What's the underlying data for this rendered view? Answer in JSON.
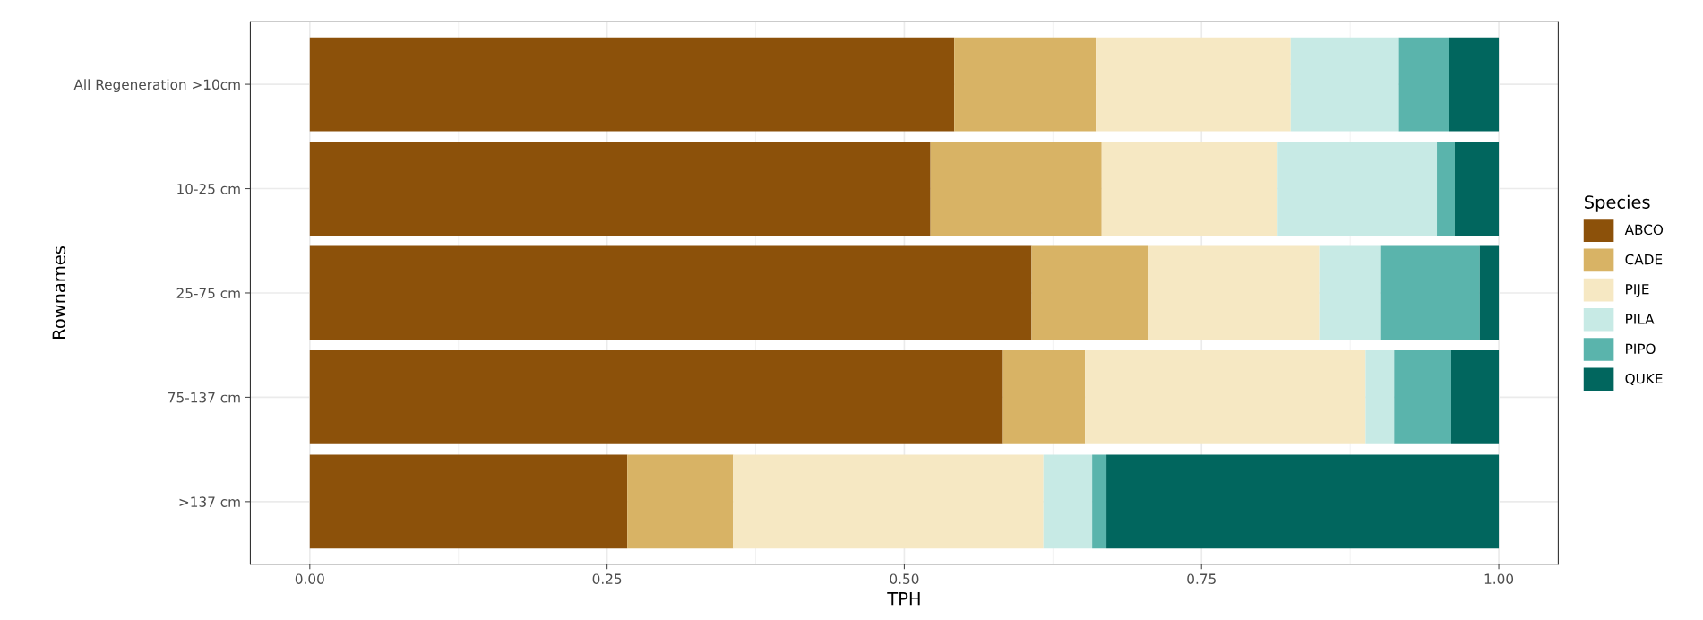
{
  "chart_data": {
    "type": "bar",
    "orientation": "horizontal",
    "stacked": true,
    "xlabel": "TPH",
    "ylabel": "Rownames",
    "legend_title": "Species",
    "legend": "right",
    "grid": true,
    "categories": [
      "All Regeneration >10cm",
      "10-25 cm",
      "25-75 cm",
      "75-137 cm",
      ">137 cm"
    ],
    "xlim": [
      -0.05,
      1.05
    ],
    "xticks": [
      {
        "value": 0,
        "label": "0.00"
      },
      {
        "value": 0.25,
        "label": "0.25"
      },
      {
        "value": 0.5,
        "label": "0.50"
      },
      {
        "value": 0.75,
        "label": "0.75"
      },
      {
        "value": 1,
        "label": "1.00"
      }
    ],
    "series": [
      {
        "name": "ABCO",
        "color": "#8c510a",
        "values": [
          0.542,
          0.522,
          0.607,
          0.583,
          0.267
        ]
      },
      {
        "name": "CADE",
        "color": "#d8b365",
        "values": [
          0.119,
          0.144,
          0.098,
          0.069,
          0.089
        ]
      },
      {
        "name": "PIJE",
        "color": "#f6e8c3",
        "values": [
          0.164,
          0.148,
          0.144,
          0.236,
          0.261
        ]
      },
      {
        "name": "PILA",
        "color": "#c7eae5",
        "values": [
          0.091,
          0.134,
          0.052,
          0.024,
          0.041
        ]
      },
      {
        "name": "PIPO",
        "color": "#5ab4ac",
        "values": [
          0.042,
          0.015,
          0.083,
          0.048,
          0.012
        ]
      },
      {
        "name": "QUKE",
        "color": "#01665e",
        "values": [
          0.042,
          0.037,
          0.016,
          0.04,
          0.33
        ]
      }
    ]
  }
}
